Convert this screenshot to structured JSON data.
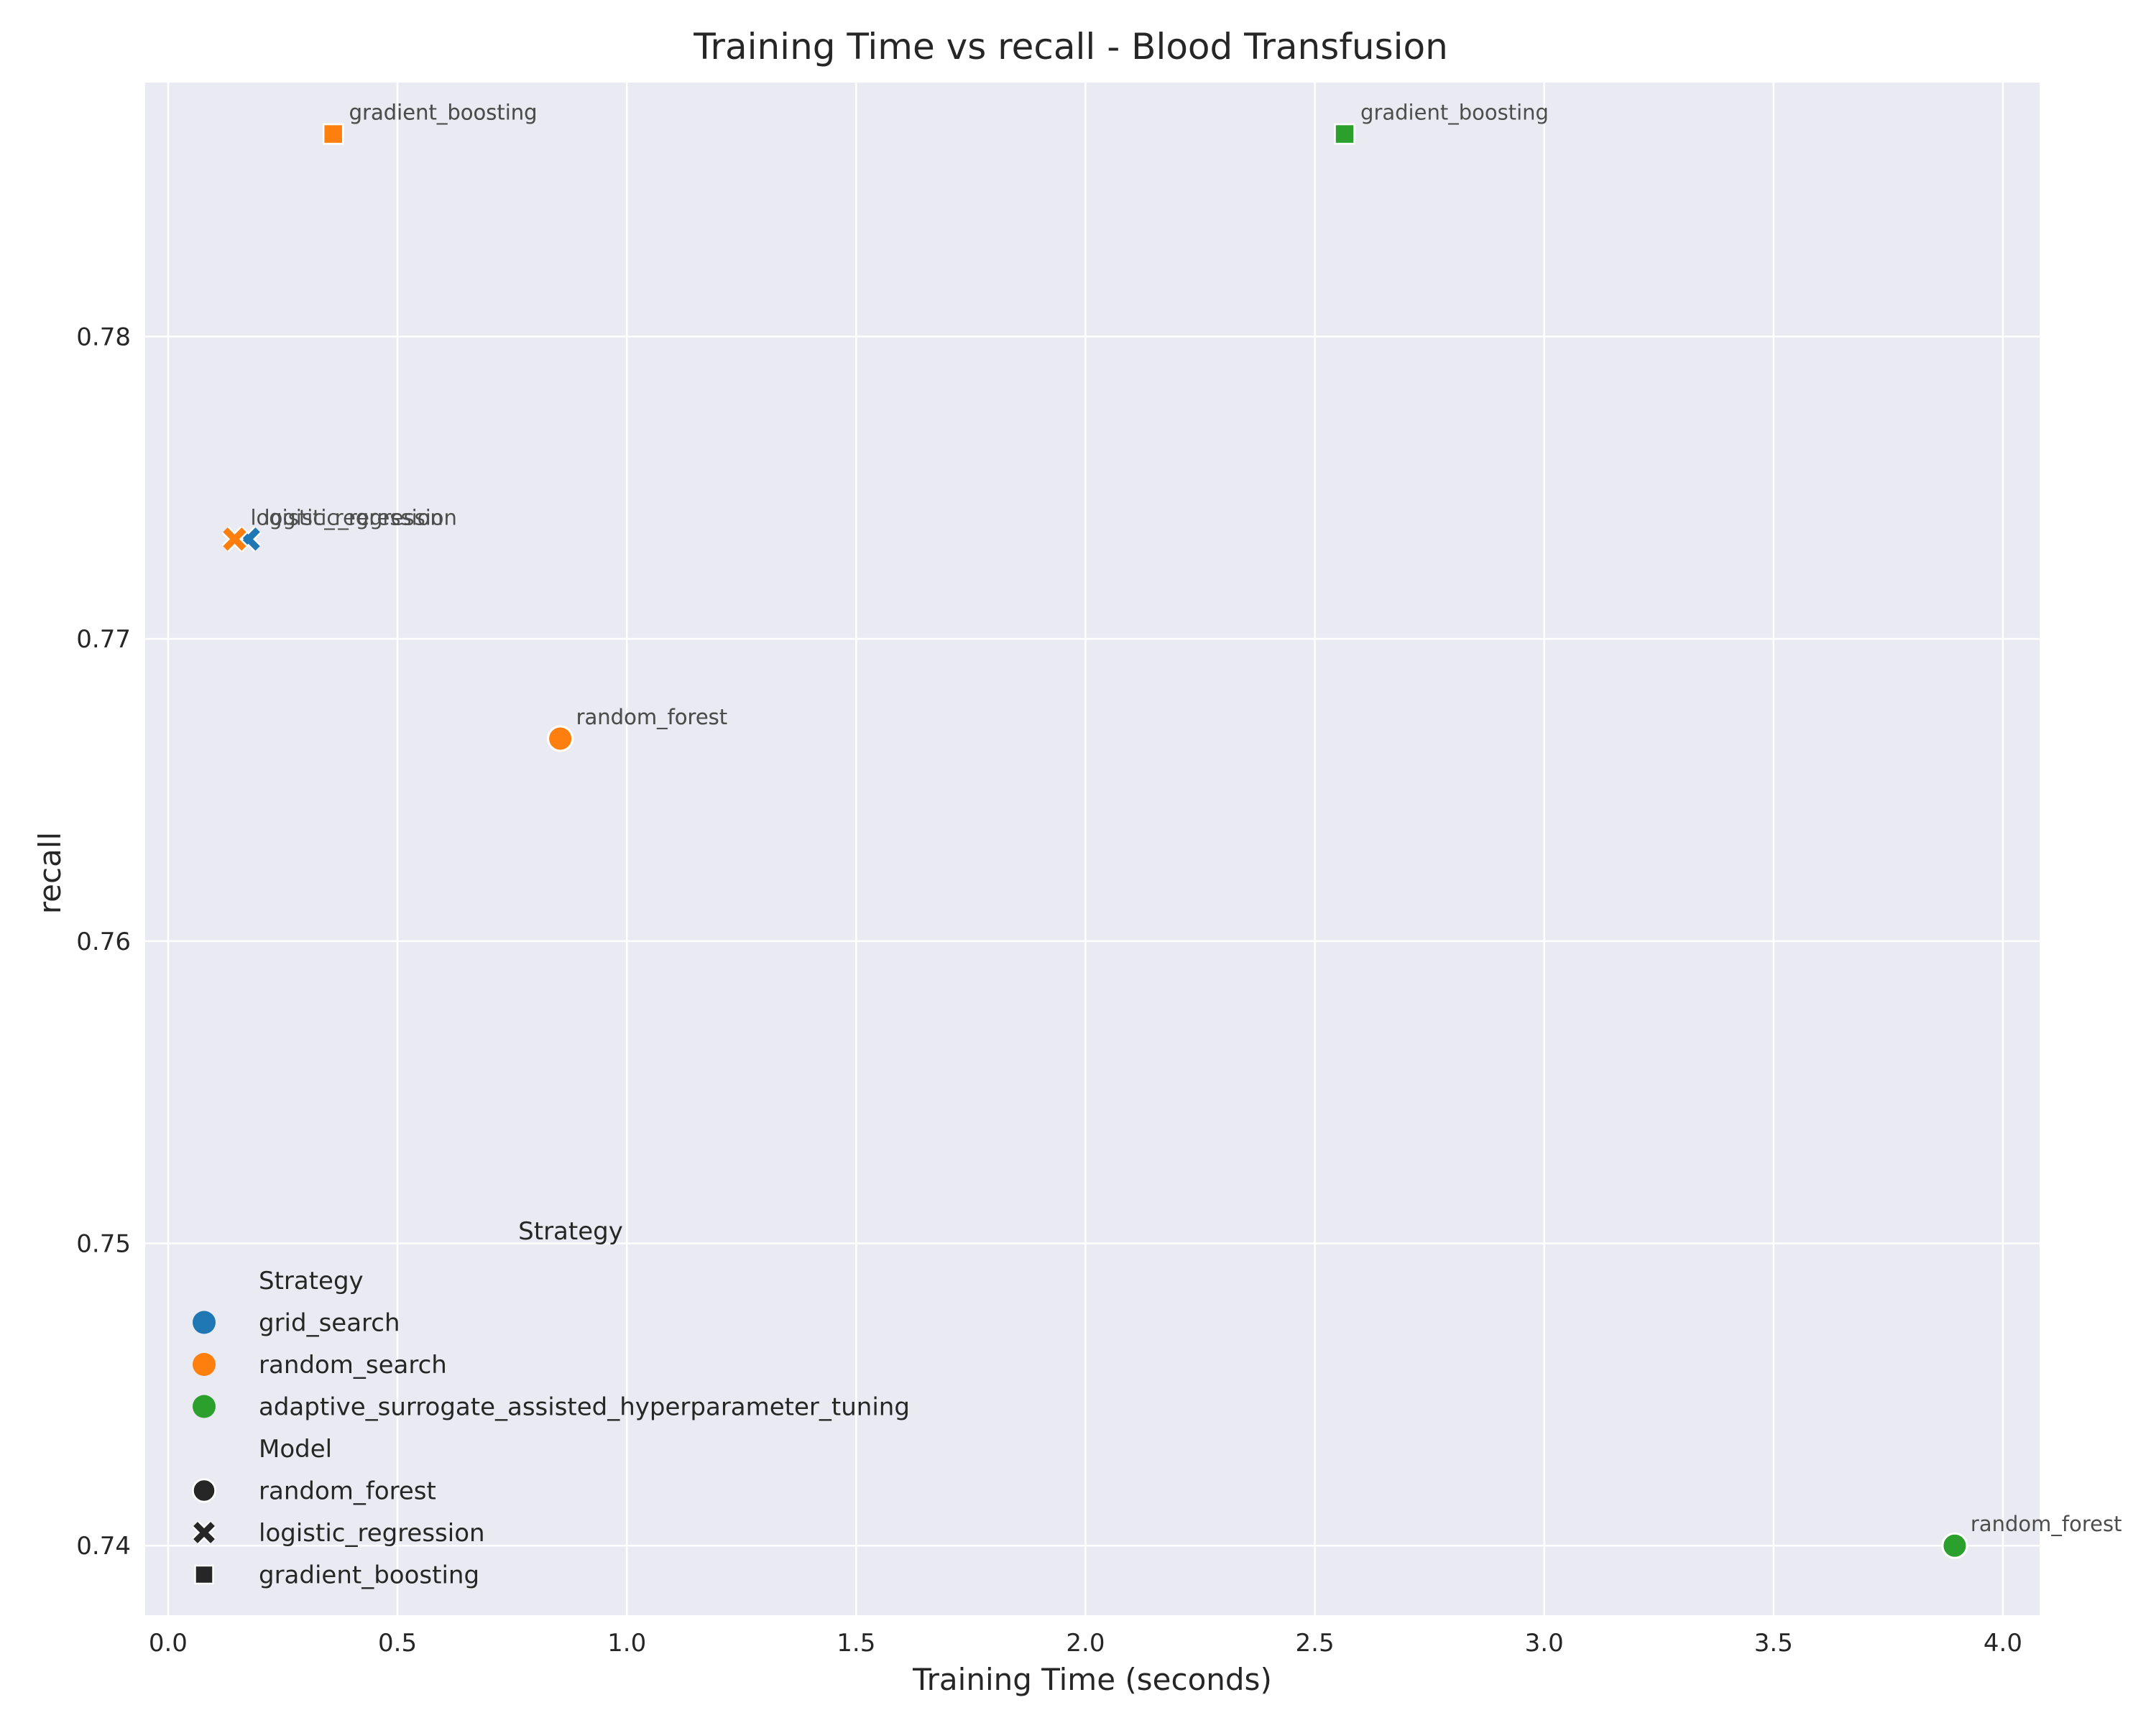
{
  "chart_data": {
    "type": "scatter",
    "title": "Training Time vs recall - Blood Transfusion",
    "xlabel": "Training Time (seconds)",
    "ylabel": "recall",
    "xlim": [
      -0.05,
      4.08
    ],
    "ylim": [
      0.7377,
      0.7884
    ],
    "xticks": [
      0.0,
      0.5,
      1.0,
      1.5,
      2.0,
      2.5,
      3.0,
      3.5,
      4.0
    ],
    "xtick_labels": [
      "0.0",
      "0.5",
      "1.0",
      "1.5",
      "2.0",
      "2.5",
      "3.0",
      "3.5",
      "4.0"
    ],
    "yticks": [
      0.74,
      0.75,
      0.76,
      0.77,
      0.78
    ],
    "ytick_labels": [
      "0.74",
      "0.75",
      "0.76",
      "0.77",
      "0.78"
    ],
    "grid": true,
    "colors": {
      "background": "#eaeaf2",
      "grid": "#ffffff",
      "grid_search": "#1f77b4",
      "random_search": "#ff7f0e",
      "adaptive_surrogate_assisted_hyperparameter_tuning": "#2ca02c",
      "annotation": "#4d4d4d"
    },
    "points": [
      {
        "strategy": "grid_search",
        "model": "random_forest",
        "x": 0.855,
        "y": 0.7667,
        "label": "random_forest"
      },
      {
        "strategy": "grid_search",
        "model": "logistic_regression",
        "x": 0.175,
        "y": 0.7733,
        "label": "logistic_regression"
      },
      {
        "strategy": "grid_search",
        "model": "gradient_boosting",
        "x": 0.36,
        "y": 0.7867,
        "label": "gradient_boosting"
      },
      {
        "strategy": "random_search",
        "model": "random_forest",
        "x": 0.855,
        "y": 0.7667,
        "label": "random_forest"
      },
      {
        "strategy": "random_search",
        "model": "logistic_regression",
        "x": 0.145,
        "y": 0.7733,
        "label": "logistic_regression"
      },
      {
        "strategy": "random_search",
        "model": "gradient_boosting",
        "x": 0.36,
        "y": 0.7867,
        "label": "gradient_boosting"
      },
      {
        "strategy": "adaptive_surrogate_assisted_hyperparameter_tuning",
        "model": "random_forest",
        "x": 3.895,
        "y": 0.74,
        "label": "random_forest"
      },
      {
        "strategy": "adaptive_surrogate_assisted_hyperparameter_tuning",
        "model": "gradient_boosting",
        "x": 2.565,
        "y": 0.7867,
        "label": "gradient_boosting"
      }
    ],
    "floating_legend_title": "Strategy",
    "legend": {
      "placement": "lower-left",
      "strategy_title": "Strategy",
      "strategies": [
        "grid_search",
        "random_search",
        "adaptive_surrogate_assisted_hyperparameter_tuning"
      ],
      "model_title": "Model",
      "models": [
        "random_forest",
        "logistic_regression",
        "gradient_boosting"
      ]
    }
  }
}
